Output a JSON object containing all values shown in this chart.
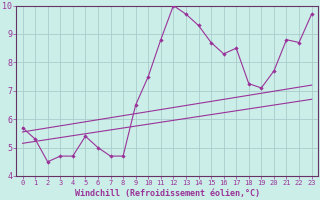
{
  "xlabel": "Windchill (Refroidissement éolien,°C)",
  "bg_color": "#cceee8",
  "grid_color": "#aacccc",
  "line_color": "#993399",
  "axis_color": "#663366",
  "bottom_bar_color": "#440066",
  "xlim": [
    -0.5,
    23.5
  ],
  "ylim": [
    4,
    10
  ],
  "xticks": [
    0,
    1,
    2,
    3,
    4,
    5,
    6,
    7,
    8,
    9,
    10,
    11,
    12,
    13,
    14,
    15,
    16,
    17,
    18,
    19,
    20,
    21,
    22,
    23
  ],
  "yticks": [
    4,
    5,
    6,
    7,
    8,
    9,
    10
  ],
  "data_line": [
    [
      0,
      5.7
    ],
    [
      1,
      5.3
    ],
    [
      2,
      4.5
    ],
    [
      3,
      4.7
    ],
    [
      4,
      4.7
    ],
    [
      5,
      5.4
    ],
    [
      6,
      5.0
    ],
    [
      7,
      4.7
    ],
    [
      8,
      4.7
    ],
    [
      9,
      6.5
    ],
    [
      10,
      7.5
    ],
    [
      11,
      8.8
    ],
    [
      12,
      10.0
    ],
    [
      13,
      9.7
    ],
    [
      14,
      9.3
    ],
    [
      15,
      8.7
    ],
    [
      16,
      8.3
    ],
    [
      17,
      8.5
    ],
    [
      18,
      7.25
    ],
    [
      19,
      7.1
    ],
    [
      20,
      7.7
    ],
    [
      21,
      8.8
    ],
    [
      22,
      8.7
    ],
    [
      23,
      9.7
    ]
  ],
  "regression_line1": [
    [
      0,
      5.55
    ],
    [
      23,
      7.2
    ]
  ],
  "regression_line2": [
    [
      0,
      5.15
    ],
    [
      23,
      6.7
    ]
  ]
}
